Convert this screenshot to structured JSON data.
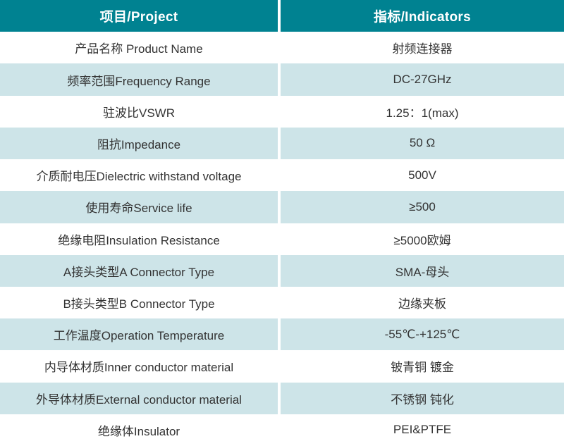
{
  "table": {
    "header": {
      "project_label": "项目/Project",
      "indicators_label": "指标/Indicators"
    },
    "rows": [
      {
        "project": "产品名称 Product Name",
        "indicator": "射频连接器"
      },
      {
        "project": "频率范围Frequency Range",
        "indicator": "DC-27GHz"
      },
      {
        "project": "驻波比VSWR",
        "indicator": "1.25：1(max)"
      },
      {
        "project": "阻抗Impedance",
        "indicator": "50 Ω"
      },
      {
        "project": "介质耐电压Dielectric withstand voltage",
        "indicator": "500V"
      },
      {
        "project": "使用寿命Service life",
        "indicator": "≥500"
      },
      {
        "project": "绝缘电阻Insulation Resistance",
        "indicator": "≥5000欧姆"
      },
      {
        "project": "A接头类型A Connector Type",
        "indicator": "SMA-母头"
      },
      {
        "project": "B接头类型B Connector Type",
        "indicator": "边缘夹板"
      },
      {
        "project": "工作温度Operation Temperature",
        "indicator": "-55℃-+125℃"
      },
      {
        "project": "内导体材质Inner conductor material",
        "indicator": "铍青铜 镀金"
      },
      {
        "project": "外导体材质External conductor material",
        "indicator": "不锈钢 钝化"
      },
      {
        "project": "绝缘体Insulator",
        "indicator": "PEI&PTFE"
      }
    ],
    "colors": {
      "header_bg": "#008291",
      "header_text": "#ffffff",
      "row_bg": "#ffffff",
      "alt_row_bg": "#cde4e8",
      "text": "#333333",
      "divider": "#ffffff"
    }
  }
}
